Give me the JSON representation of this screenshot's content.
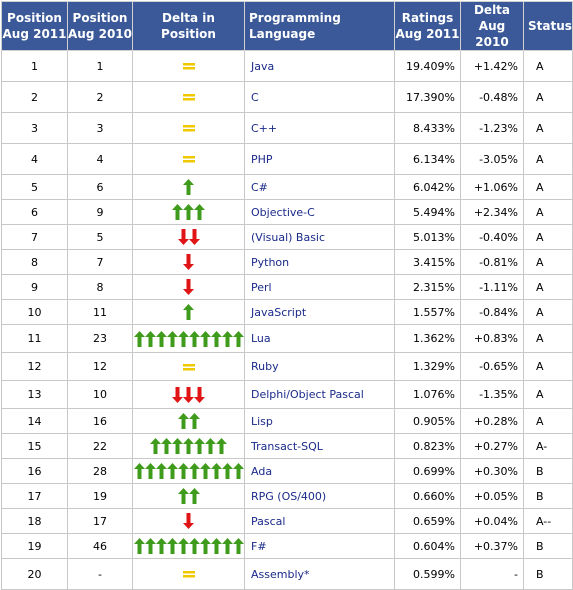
{
  "headers": {
    "pos2011": [
      "Position",
      "Aug 2011"
    ],
    "pos2010": [
      "Position",
      "Aug 2010"
    ],
    "delta_pos": "Delta in Position",
    "language": "Programming Language",
    "ratings": [
      "Ratings",
      "Aug 2011"
    ],
    "delta2010": [
      "Delta",
      "Aug 2010"
    ],
    "status": "Status"
  },
  "colors": {
    "header_bg": "#3b5998",
    "up_arrow": "#3f9b1b",
    "down_arrow": "#e01414",
    "equal_sign": "#f0c800",
    "language_text": "#1a2a8a"
  },
  "icons": {
    "up": "green-up-arrow-icon",
    "down": "red-down-arrow-icon",
    "equal": "yellow-equal-sign-icon"
  },
  "rows": [
    {
      "pos2011": "1",
      "pos2010": "1",
      "dir": "equal",
      "count": 1,
      "language": "Java",
      "rating": "19.409%",
      "delta": "+1.42%",
      "status": "A"
    },
    {
      "pos2011": "2",
      "pos2010": "2",
      "dir": "equal",
      "count": 1,
      "language": "C",
      "rating": "17.390%",
      "delta": "-0.48%",
      "status": "A"
    },
    {
      "pos2011": "3",
      "pos2010": "3",
      "dir": "equal",
      "count": 1,
      "language": "C++",
      "rating": "8.433%",
      "delta": "-1.23%",
      "status": "A"
    },
    {
      "pos2011": "4",
      "pos2010": "4",
      "dir": "equal",
      "count": 1,
      "language": "PHP",
      "rating": "6.134%",
      "delta": "-3.05%",
      "status": "A"
    },
    {
      "pos2011": "5",
      "pos2010": "6",
      "dir": "up",
      "count": 1,
      "language": "C#",
      "rating": "6.042%",
      "delta": "+1.06%",
      "status": "A"
    },
    {
      "pos2011": "6",
      "pos2010": "9",
      "dir": "up",
      "count": 3,
      "language": "Objective-C",
      "rating": "5.494%",
      "delta": "+2.34%",
      "status": "A"
    },
    {
      "pos2011": "7",
      "pos2010": "5",
      "dir": "down",
      "count": 2,
      "language": "(Visual) Basic",
      "rating": "5.013%",
      "delta": "-0.40%",
      "status": "A"
    },
    {
      "pos2011": "8",
      "pos2010": "7",
      "dir": "down",
      "count": 1,
      "language": "Python",
      "rating": "3.415%",
      "delta": "-0.81%",
      "status": "A"
    },
    {
      "pos2011": "9",
      "pos2010": "8",
      "dir": "down",
      "count": 1,
      "language": "Perl",
      "rating": "2.315%",
      "delta": "-1.11%",
      "status": "A"
    },
    {
      "pos2011": "10",
      "pos2010": "11",
      "dir": "up",
      "count": 1,
      "language": "JavaScript",
      "rating": "1.557%",
      "delta": "-0.84%",
      "status": "A"
    },
    {
      "pos2011": "11",
      "pos2010": "23",
      "dir": "up",
      "count": 10,
      "language": "Lua",
      "rating": "1.362%",
      "delta": "+0.83%",
      "status": "A"
    },
    {
      "pos2011": "12",
      "pos2010": "12",
      "dir": "equal",
      "count": 1,
      "language": "Ruby",
      "rating": "1.329%",
      "delta": "-0.65%",
      "status": "A"
    },
    {
      "pos2011": "13",
      "pos2010": "10",
      "dir": "down",
      "count": 3,
      "language": "Delphi/Object Pascal",
      "rating": "1.076%",
      "delta": "-1.35%",
      "status": "A"
    },
    {
      "pos2011": "14",
      "pos2010": "16",
      "dir": "up",
      "count": 2,
      "language": "Lisp",
      "rating": "0.905%",
      "delta": "+0.28%",
      "status": "A"
    },
    {
      "pos2011": "15",
      "pos2010": "22",
      "dir": "up",
      "count": 7,
      "language": "Transact-SQL",
      "rating": "0.823%",
      "delta": "+0.27%",
      "status": "A-"
    },
    {
      "pos2011": "16",
      "pos2010": "28",
      "dir": "up",
      "count": 10,
      "language": "Ada",
      "rating": "0.699%",
      "delta": "+0.30%",
      "status": "B"
    },
    {
      "pos2011": "17",
      "pos2010": "19",
      "dir": "up",
      "count": 2,
      "language": "RPG (OS/400)",
      "rating": "0.660%",
      "delta": "+0.05%",
      "status": "B"
    },
    {
      "pos2011": "18",
      "pos2010": "17",
      "dir": "down",
      "count": 1,
      "language": "Pascal",
      "rating": "0.659%",
      "delta": "+0.04%",
      "status": "A--"
    },
    {
      "pos2011": "19",
      "pos2010": "46",
      "dir": "up",
      "count": 10,
      "language": "F#",
      "rating": "0.604%",
      "delta": "+0.37%",
      "status": "B"
    },
    {
      "pos2011": "20",
      "pos2010": "-",
      "dir": "equal",
      "count": 1,
      "language": "Assembly*",
      "rating": "0.599%",
      "delta": "-",
      "status": "B"
    }
  ]
}
